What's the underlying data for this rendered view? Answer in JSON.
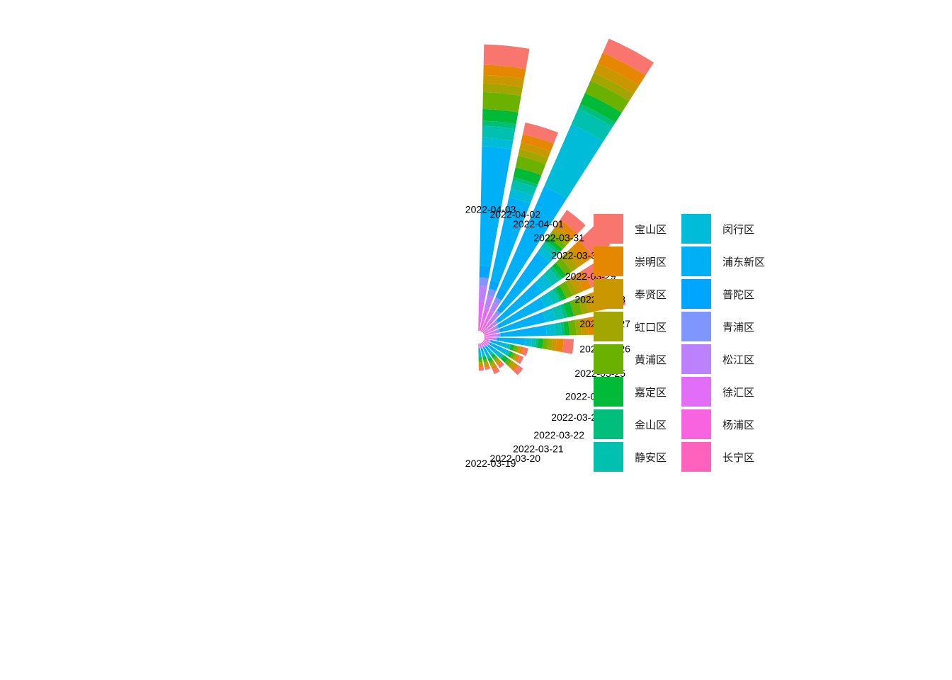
{
  "chart_data": {
    "type": "bar",
    "coord": "polar",
    "position": "stack",
    "categories": [
      "2022-03-19",
      "2022-03-20",
      "2022-03-21",
      "2022-03-22",
      "2022-03-23",
      "2022-03-24",
      "2022-03-25",
      "2022-03-26",
      "2022-03-27",
      "2022-03-28",
      "2022-03-29",
      "2022-03-30",
      "2022-03-31",
      "2022-04-01",
      "2022-04-02",
      "2022-04-03"
    ],
    "series": [
      {
        "name": "宝山区",
        "color": "#F8766D",
        "values": [
          4,
          3,
          6,
          5,
          7,
          5,
          6,
          12,
          18,
          22,
          20,
          25,
          14,
          18,
          14,
          24
        ]
      },
      {
        "name": "崇明区",
        "color": "#E58700",
        "values": [
          2,
          2,
          3,
          2,
          3,
          2,
          3,
          8,
          10,
          12,
          10,
          12,
          8,
          14,
          10,
          12
        ]
      },
      {
        "name": "奉贤区",
        "color": "#C99800",
        "values": [
          2,
          2,
          2,
          2,
          3,
          2,
          2,
          5,
          8,
          10,
          8,
          10,
          6,
          12,
          8,
          10
        ]
      },
      {
        "name": "虹口区",
        "color": "#A3A500",
        "values": [
          2,
          2,
          2,
          2,
          3,
          2,
          2,
          5,
          6,
          8,
          6,
          8,
          5,
          10,
          8,
          10
        ]
      },
      {
        "name": "黄浦区",
        "color": "#6BB100",
        "values": [
          3,
          3,
          3,
          3,
          5,
          3,
          4,
          6,
          8,
          10,
          8,
          8,
          6,
          16,
          14,
          20
        ]
      },
      {
        "name": "嘉定区",
        "color": "#00BA38",
        "values": [
          2,
          3,
          3,
          4,
          6,
          3,
          4,
          6,
          6,
          8,
          6,
          6,
          5,
          14,
          12,
          14
        ]
      },
      {
        "name": "金山区",
        "color": "#00BF7D",
        "values": [
          1,
          1,
          1,
          1,
          2,
          1,
          1,
          2,
          3,
          4,
          3,
          4,
          3,
          6,
          4,
          6
        ]
      },
      {
        "name": "静安区",
        "color": "#00C0AF",
        "values": [
          2,
          2,
          3,
          2,
          4,
          3,
          3,
          5,
          8,
          10,
          8,
          10,
          6,
          20,
          10,
          14
        ]
      },
      {
        "name": "闵行区",
        "color": "#00BCD8",
        "values": [
          3,
          3,
          4,
          4,
          6,
          6,
          8,
          8,
          10,
          12,
          10,
          14,
          8,
          80,
          10,
          10
        ]
      },
      {
        "name": "浦东新区",
        "color": "#00B0F6",
        "values": [
          4,
          4,
          6,
          5,
          8,
          14,
          10,
          30,
          50,
          50,
          55,
          58,
          75,
          130,
          100,
          140
        ]
      },
      {
        "name": "普陀区",
        "color": "#00A5FF",
        "values": [
          1,
          1,
          1,
          1,
          2,
          2,
          2,
          3,
          4,
          5,
          5,
          5,
          8,
          12,
          10,
          14
        ]
      },
      {
        "name": "青浦区",
        "color": "#7F96FF",
        "values": [
          1,
          1,
          1,
          1,
          1,
          1,
          1,
          2,
          3,
          3,
          3,
          3,
          4,
          6,
          8,
          10
        ]
      },
      {
        "name": "松江区",
        "color": "#BC81FF",
        "values": [
          1,
          1,
          1,
          1,
          1,
          1,
          1,
          3,
          4,
          4,
          4,
          4,
          8,
          12,
          15,
          18
        ]
      },
      {
        "name": "徐汇区",
        "color": "#E26EF7",
        "values": [
          2,
          2,
          2,
          2,
          3,
          3,
          3,
          5,
          6,
          6,
          6,
          8,
          10,
          14,
          16,
          20
        ]
      },
      {
        "name": "杨浦区",
        "color": "#F863DF",
        "values": [
          1,
          1,
          1,
          1,
          2,
          2,
          2,
          3,
          4,
          4,
          4,
          5,
          6,
          8,
          8,
          10
        ]
      },
      {
        "name": "长宁区",
        "color": "#FF62BC",
        "values": [
          1,
          1,
          1,
          1,
          1,
          1,
          1,
          2,
          2,
          2,
          2,
          2,
          3,
          4,
          4,
          5
        ]
      }
    ],
    "title": "",
    "xlabel": "",
    "ylabel": "",
    "grid": false,
    "legend_position": "right",
    "legend_columns": 2
  }
}
